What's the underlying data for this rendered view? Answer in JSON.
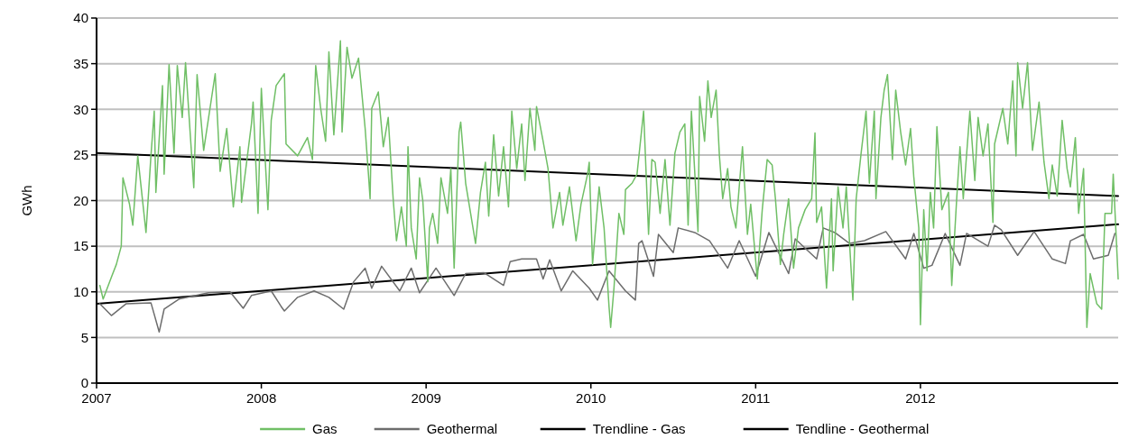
{
  "chart_data": {
    "type": "line",
    "ylabel": "GWh",
    "xlim": [
      2007,
      2013.2
    ],
    "xticks": [
      2007,
      2008,
      2009,
      2010,
      2011,
      2012
    ],
    "ylim": [
      0,
      40
    ],
    "yticks": [
      0,
      5,
      10,
      15,
      20,
      25,
      30,
      35,
      40
    ],
    "grid": "y",
    "legend": "bottom",
    "series": [
      {
        "name": "Gas",
        "color": "#70bf66",
        "x": [
          2007.02,
          2007.04,
          2007.09,
          2007.12,
          2007.15,
          2007.16,
          2007.2,
          2007.22,
          2007.25,
          2007.3,
          2007.33,
          2007.35,
          2007.36,
          2007.4,
          2007.41,
          2007.44,
          2007.47,
          2007.49,
          2007.52,
          2007.54,
          2007.59,
          2007.61,
          2007.65,
          2007.72,
          2007.75,
          2007.79,
          2007.83,
          2007.87,
          2007.88,
          2007.94,
          2007.95,
          2007.98,
          2008.0,
          2008.04,
          2008.06,
          2008.09,
          2008.14,
          2008.15,
          2008.22,
          2008.28,
          2008.31,
          2008.33,
          2008.36,
          2008.39,
          2008.41,
          2008.44,
          2008.48,
          2008.49,
          2008.52,
          2008.55,
          2008.59,
          2008.63,
          2008.65,
          2008.66,
          2008.67,
          2008.71,
          2008.74,
          2008.77,
          2008.8,
          2008.82,
          2008.85,
          2008.88,
          2008.89,
          2008.91,
          2008.94,
          2008.96,
          2008.98,
          2009.01,
          2009.02,
          2009.04,
          2009.07,
          2009.09,
          2009.13,
          2009.15,
          2009.17,
          2009.2,
          2009.21,
          2009.24,
          2009.27,
          2009.3,
          2009.33,
          2009.36,
          2009.38,
          2009.41,
          2009.44,
          2009.47,
          2009.5,
          2009.52,
          2009.55,
          2009.58,
          2009.6,
          2009.63,
          2009.66,
          2009.67,
          2009.71,
          2009.74,
          2009.77,
          2009.81,
          2009.83,
          2009.87,
          2009.91,
          2009.94,
          2009.98,
          2009.99,
          2010.01,
          2010.05,
          2010.08,
          2010.11,
          2010.12,
          2010.14,
          2010.17,
          2010.2,
          2010.21,
          2010.25,
          2010.28,
          2010.32,
          2010.35,
          2010.37,
          2010.39,
          2010.42,
          2010.45,
          2010.48,
          2010.51,
          2010.54,
          2010.57,
          2010.59,
          2010.61,
          2010.65,
          2010.66,
          2010.69,
          2010.71,
          2010.73,
          2010.76,
          2010.78,
          2010.8,
          2010.83,
          2010.85,
          2010.88,
          2010.92,
          2010.95,
          2010.97,
          2011.01,
          2011.04,
          2011.07,
          2011.1,
          2011.12,
          2011.15,
          2011.17,
          2011.2,
          2011.23,
          2011.26,
          2011.3,
          2011.34,
          2011.36,
          2011.37,
          2011.4,
          2011.43,
          2011.46,
          2011.47,
          2011.5,
          2011.53,
          2011.55,
          2011.59,
          2011.61,
          2011.64,
          2011.67,
          2011.69,
          2011.72,
          2011.73,
          2011.76,
          2011.78,
          2011.8,
          2011.83,
          2011.85,
          2011.88,
          2011.91,
          2011.94,
          2011.96,
          2011.99,
          2012.0,
          2012.02,
          2012.04,
          2012.06,
          2012.08,
          2012.1,
          2012.13,
          2012.17,
          2012.19,
          2012.22,
          2012.24,
          2012.26,
          2012.3,
          2012.33,
          2012.35,
          2012.38,
          2012.41,
          2012.44,
          2012.45,
          2012.5,
          2012.53,
          2012.56,
          2012.58,
          2012.59,
          2012.62,
          2012.65,
          2012.68,
          2012.72,
          2012.75,
          2012.78,
          2012.8,
          2012.83,
          2012.86,
          2012.89,
          2012.91,
          2012.94,
          2012.96,
          2012.99,
          2013.01,
          2013.03,
          2013.07,
          2013.1,
          2013.12,
          2013.16,
          2013.17,
          2013.2
        ],
        "values": [
          10.7,
          9.2,
          11.6,
          13.0,
          15.0,
          22.5,
          19.6,
          17.3,
          24.9,
          16.5,
          24.9,
          29.8,
          20.9,
          32.6,
          22.9,
          34.9,
          25.2,
          34.8,
          29.1,
          35.1,
          21.4,
          33.8,
          25.5,
          33.9,
          23.2,
          27.9,
          19.3,
          25.9,
          19.8,
          28.4,
          30.8,
          18.6,
          32.3,
          19.0,
          28.8,
          32.6,
          33.9,
          26.2,
          24.9,
          26.9,
          24.5,
          34.8,
          30.1,
          26.5,
          36.3,
          27.2,
          37.5,
          27.5,
          36.8,
          33.4,
          35.6,
          27.9,
          22.9,
          20.2,
          30.1,
          31.9,
          25.9,
          29.1,
          20.2,
          15.6,
          19.3,
          15.0,
          25.9,
          17.0,
          13.6,
          22.5,
          20.0,
          11.1,
          17.0,
          18.6,
          15.3,
          22.5,
          18.6,
          23.5,
          12.6,
          27.5,
          28.6,
          21.9,
          18.6,
          15.3,
          20.9,
          24.2,
          18.3,
          27.2,
          20.5,
          25.9,
          19.3,
          29.8,
          23.5,
          28.4,
          22.2,
          30.1,
          25.5,
          30.3,
          26.5,
          23.5,
          17.0,
          20.9,
          17.3,
          21.5,
          15.6,
          19.6,
          22.9,
          24.2,
          13.0,
          21.5,
          17.0,
          8.4,
          6.1,
          10.4,
          18.6,
          16.3,
          21.2,
          21.9,
          22.9,
          29.8,
          16.3,
          24.5,
          24.2,
          18.6,
          24.5,
          17.3,
          25.2,
          27.5,
          28.4,
          17.3,
          29.8,
          16.6,
          31.4,
          26.5,
          33.1,
          29.1,
          32.1,
          24.9,
          20.2,
          23.5,
          19.3,
          17.0,
          25.9,
          16.3,
          19.6,
          11.4,
          19.0,
          24.5,
          23.9,
          20.2,
          13.0,
          16.3,
          20.2,
          12.6,
          17.0,
          19.0,
          20.2,
          27.4,
          17.6,
          19.3,
          10.4,
          20.2,
          12.3,
          21.5,
          17.0,
          21.5,
          9.1,
          20.2,
          25.2,
          29.8,
          21.9,
          29.8,
          20.2,
          29.1,
          32.1,
          33.8,
          24.5,
          32.1,
          27.5,
          23.9,
          27.9,
          22.5,
          17.0,
          6.4,
          19.0,
          12.3,
          20.9,
          17.0,
          28.1,
          19.0,
          20.9,
          10.7,
          20.2,
          25.9,
          20.2,
          29.8,
          22.2,
          29.1,
          24.9,
          28.4,
          17.6,
          26.2,
          30.1,
          26.2,
          33.1,
          24.9,
          35.1,
          30.1,
          35.1,
          25.5,
          30.8,
          24.2,
          20.2,
          23.9,
          20.5,
          28.8,
          23.5,
          21.5,
          26.9,
          18.6,
          23.5,
          6.1,
          12.0,
          8.7,
          8.1,
          18.6,
          18.6,
          22.9,
          11.4
        ]
      },
      {
        "name": "Geothermal",
        "color": "#6d6d6d",
        "x": [
          2007.02,
          2007.09,
          2007.18,
          2007.33,
          2007.38,
          2007.41,
          2007.5,
          2007.68,
          2007.81,
          2007.89,
          2007.94,
          2008.06,
          2008.12,
          2008.14,
          2008.22,
          2008.32,
          2008.41,
          2008.5,
          2008.56,
          2008.63,
          2008.67,
          2008.73,
          2008.84,
          2008.91,
          2008.96,
          2009.06,
          2009.17,
          2009.24,
          2009.35,
          2009.47,
          2009.51,
          2009.58,
          2009.67,
          2009.71,
          2009.75,
          2009.82,
          2009.89,
          2009.99,
          2010.04,
          2010.11,
          2010.21,
          2010.27,
          2010.29,
          2010.31,
          2010.38,
          2010.41,
          2010.5,
          2010.53,
          2010.63,
          2010.72,
          2010.83,
          2010.9,
          2011.0,
          2011.08,
          2011.2,
          2011.24,
          2011.37,
          2011.41,
          2011.48,
          2011.57,
          2011.66,
          2011.79,
          2011.91,
          2011.96,
          2012.02,
          2012.07,
          2012.15,
          2012.24,
          2012.28,
          2012.41,
          2012.45,
          2012.49,
          2012.59,
          2012.69,
          2012.8,
          2012.88,
          2012.91,
          2012.99,
          2013.05,
          2013.14,
          2013.18
        ],
        "values": [
          8.7,
          7.4,
          8.7,
          8.8,
          5.6,
          8.1,
          9.2,
          9.9,
          10.0,
          8.2,
          9.6,
          10.1,
          8.4,
          7.9,
          9.4,
          10.1,
          9.4,
          8.1,
          11.1,
          12.6,
          10.4,
          12.8,
          10.1,
          12.6,
          9.9,
          12.6,
          9.6,
          12.0,
          12.1,
          10.7,
          13.3,
          13.6,
          13.6,
          11.4,
          13.5,
          10.1,
          12.3,
          10.4,
          9.1,
          12.3,
          10.1,
          9.1,
          15.3,
          15.6,
          11.7,
          16.3,
          14.3,
          17.0,
          16.5,
          15.6,
          12.6,
          15.6,
          11.7,
          16.5,
          12.0,
          15.8,
          13.6,
          17.0,
          16.5,
          15.3,
          15.6,
          16.6,
          13.6,
          16.4,
          12.6,
          12.9,
          16.4,
          12.9,
          16.4,
          15.0,
          17.3,
          16.8,
          14.0,
          16.6,
          13.6,
          13.1,
          15.6,
          16.3,
          13.6,
          14.0,
          16.4
        ]
      },
      {
        "name": "Trendline - Gas",
        "color": "#000000",
        "x": [
          2007,
          2013.2
        ],
        "values": [
          25.2,
          20.5
        ]
      },
      {
        "name": "Tendline - Geothermal",
        "color": "#000000",
        "x": [
          2007,
          2013.2
        ],
        "values": [
          8.7,
          17.4
        ]
      }
    ]
  }
}
